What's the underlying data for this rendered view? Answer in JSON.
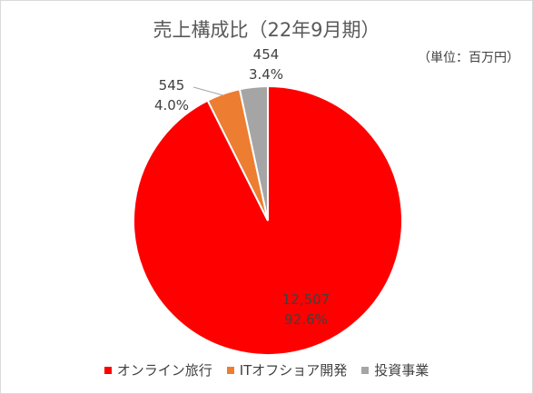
{
  "chart_data": {
    "type": "pie",
    "title": "売上構成比（22年9月期）",
    "unit_label": "（単位：百万円）",
    "slices": [
      {
        "name": "オンライン旅行",
        "value": 12507,
        "value_label": "12,507",
        "percent_label": "92.6%",
        "color": "#ff0000"
      },
      {
        "name": "ITオフショア開発",
        "value": 545,
        "value_label": "545",
        "percent_label": "4.0%",
        "color": "#ed7d31"
      },
      {
        "name": "投資事業",
        "value": 454,
        "value_label": "454",
        "percent_label": "3.4%",
        "color": "#a5a5a5"
      }
    ]
  }
}
